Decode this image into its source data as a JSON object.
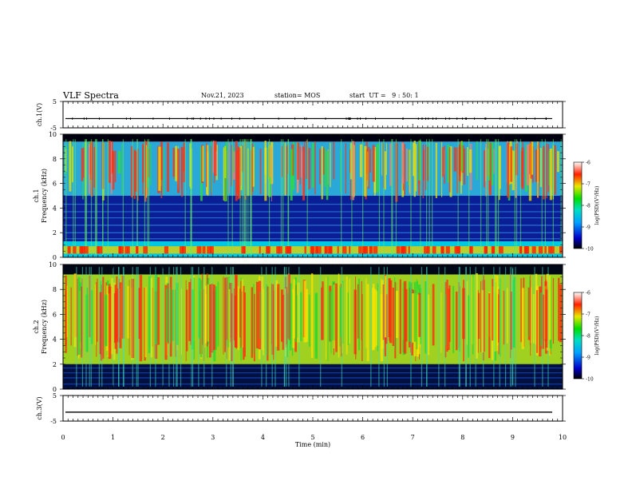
{
  "header": {
    "title": "VLF Spectra",
    "date": "Nov.21, 2023",
    "station": "station= MOS",
    "start": "start  UT =   9 : 50: 1"
  },
  "chart_data": [
    {
      "type": "line",
      "panel": "ch1 voltage",
      "ylabel": "ch.1(V)",
      "y_ticks": [
        "5",
        "-5"
      ],
      "ylim": [
        -5,
        5
      ],
      "xlim": [
        0,
        10
      ],
      "series": [
        {
          "values": [
            -1.5,
            -1.5
          ]
        }
      ]
    },
    {
      "type": "heatmap",
      "panel": "ch1 spectrogram",
      "ylabel": "ch.1 Frequency (kHz)",
      "y_ticks": [
        "0",
        "2",
        "4",
        "6",
        "8",
        "10"
      ],
      "ylim": [
        0,
        10
      ],
      "xlim": [
        0,
        10
      ],
      "colorbar": {
        "label": "log(PSD)(V²/Hz)",
        "ticks": [
          "-6",
          "-7",
          "-8",
          "-9",
          "-10"
        ],
        "range": [
          -10,
          -6
        ]
      }
    },
    {
      "type": "heatmap",
      "panel": "ch2 spectrogram",
      "ylabel": "ch.2 Frequency (kHz)",
      "y_ticks": [
        "0",
        "2",
        "4",
        "6",
        "8",
        "10"
      ],
      "ylim": [
        0,
        10
      ],
      "xlim": [
        0,
        10
      ],
      "colorbar": {
        "label": "log(PSD)(V²/Hz)",
        "ticks": [
          "-6",
          "-7",
          "-8",
          "-9",
          "-10"
        ],
        "range": [
          -10,
          -6
        ]
      }
    },
    {
      "type": "line",
      "panel": "ch3 voltage",
      "ylabel": "ch.3(V)",
      "y_ticks": [
        "5",
        "-5"
      ],
      "ylim": [
        -5,
        5
      ],
      "xlim": [
        0,
        10
      ],
      "series": [
        {
          "values": [
            -1.5,
            -1.5
          ]
        }
      ]
    }
  ],
  "x_axis": {
    "label": "Time  (min)",
    "ticks": [
      "0",
      "1",
      "2",
      "3",
      "4",
      "5",
      "6",
      "7",
      "8",
      "9",
      "10"
    ]
  }
}
